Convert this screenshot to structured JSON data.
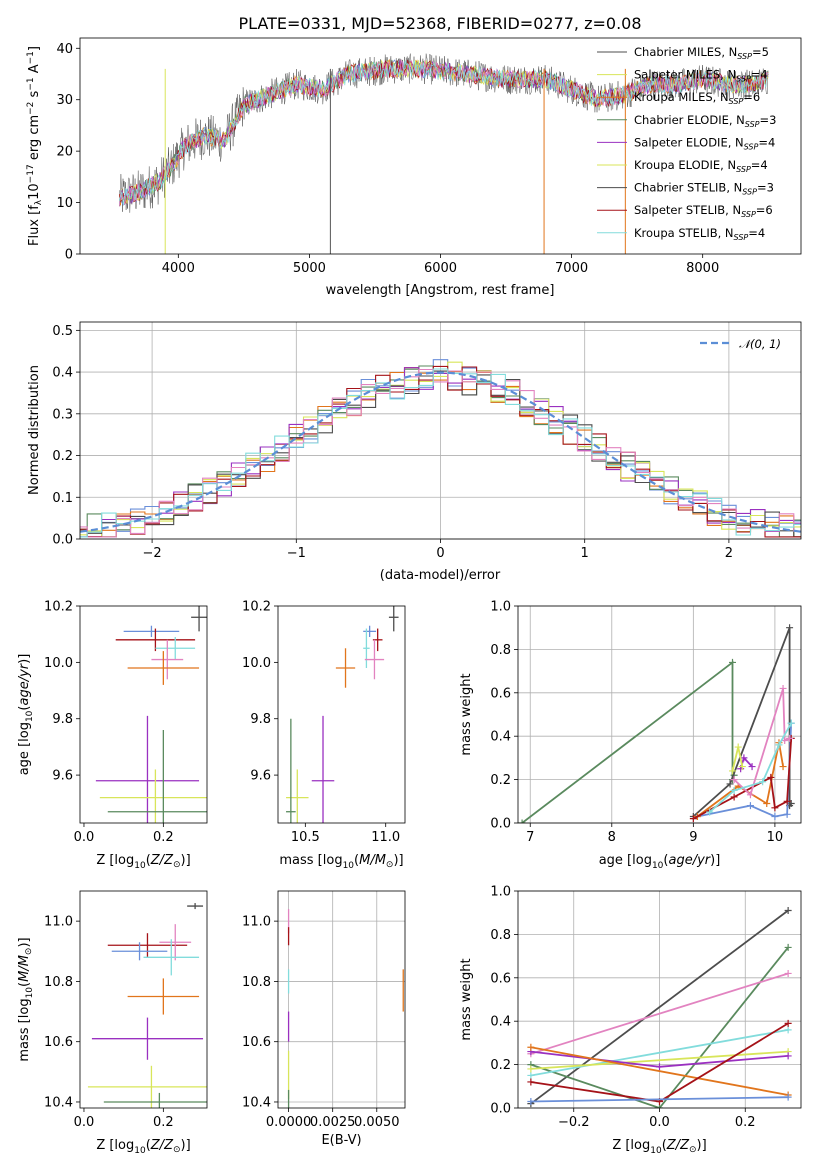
{
  "title": "PLATE=0331, MJD=52368, FIBERID=0277, z=0.08",
  "colors": {
    "chabrier_miles": "#6a8fd9",
    "salpeter_miles": "#e1751c",
    "kroupa_miles": "#5a8a5e",
    "chabrier_elodie": "#9a30c0",
    "salpeter_elodie": "#d8e55a",
    "kroupa_elodie": "#4d4d4d",
    "chabrier_stelib": "#a51218",
    "salpeter_stelib": "#e283c0",
    "kroupa_stelib": "#82dcdc",
    "pink": "#e283c0",
    "cyan": "#82dcdc",
    "normal": "#5b8ed6"
  },
  "chart_data": [
    {
      "type": "line",
      "panel": "spectrum",
      "xlabel": "wavelength [Angstrom, rest frame]",
      "ylabel": "Flux [f_λ10^-17 erg cm^-2 s^-1 A^-1]",
      "xlim": [
        3250,
        8750
      ],
      "ylim": [
        0,
        42
      ],
      "xticks": [
        4000,
        5000,
        6000,
        7000,
        8000
      ],
      "yticks": [
        0,
        10,
        20,
        30,
        40
      ],
      "legend_position": "upper-right",
      "legend": [
        "Chabrier MILES, N_SSP=5",
        "Salpeter MILES, N_SSP=4",
        "Kroupa MILES, N_SSP=6",
        "Chabrier ELODIE, N_SSP=3",
        "Salpeter ELODIE, N_SSP=4",
        "Kroupa ELODIE, N_SSP=4",
        "Chabrier STELIB, N_SSP=3",
        "Salpeter STELIB, N_SSP=6",
        "Kroupa STELIB, N_SSP=4"
      ],
      "continuum": {
        "x": [
          3550,
          3700,
          3850,
          3950,
          4050,
          4200,
          4350,
          4500,
          4700,
          4900,
          5100,
          5300,
          5600,
          5900,
          6200,
          6500,
          6800,
          7000,
          7200,
          7400,
          7600,
          7800,
          8000,
          8200,
          8400,
          8500
        ],
        "y": [
          11,
          12,
          14,
          17,
          21,
          23,
          22,
          29,
          31,
          33,
          32,
          35,
          36,
          36,
          35,
          34,
          34,
          32,
          30,
          31,
          33,
          33,
          34,
          33,
          33,
          34
        ]
      }
    },
    {
      "type": "bar",
      "panel": "residual-histogram",
      "xlabel": "(data-model)/error",
      "ylabel": "Normed distribution",
      "xlim": [
        -2.5,
        2.5
      ],
      "ylim": [
        0,
        0.52
      ],
      "xticks": [
        -2,
        -1,
        0,
        1,
        2
      ],
      "yticks": [
        0.0,
        0.1,
        0.2,
        0.3,
        0.4,
        0.5
      ],
      "grid": true,
      "legend_position": "upper-right",
      "legend": [
        "N(0,1)"
      ],
      "bin_width": 0.1,
      "envelope": {
        "x": [
          -2.5,
          -2.0,
          -1.5,
          -1.0,
          -0.5,
          0.0,
          0.5,
          1.0,
          1.5,
          2.0,
          2.5
        ],
        "y": [
          0.02,
          0.05,
          0.13,
          0.24,
          0.35,
          0.4,
          0.35,
          0.24,
          0.13,
          0.05,
          0.02
        ]
      }
    },
    {
      "type": "scatter",
      "panel": "age-vs-Z",
      "xlabel": "Z [log10(Z/Z⊙)]",
      "ylabel": "age [log10(age/yr)]",
      "xlim": [
        -0.01,
        0.31
      ],
      "ylim": [
        9.43,
        10.2
      ],
      "xticks": [
        0.0,
        0.2
      ],
      "yticks": [
        9.6,
        9.8,
        10.0,
        10.2
      ],
      "points": [
        {
          "series": "kroupa_elodie",
          "x": 0.29,
          "y": 10.16,
          "xerr": 0.02,
          "yerr": 0.05
        },
        {
          "series": "chabrier_miles",
          "x": 0.17,
          "y": 10.11,
          "xerr": 0.07,
          "yerr": 0.02
        },
        {
          "series": "chabrier_stelib",
          "x": 0.18,
          "y": 10.08,
          "xerr": 0.1,
          "yerr": 0.04
        },
        {
          "series": "kroupa_stelib",
          "x": 0.23,
          "y": 10.05,
          "xerr": 0.05,
          "yerr": 0.04
        },
        {
          "series": "salpeter_stelib",
          "x": 0.21,
          "y": 10.01,
          "xerr": 0.04,
          "yerr": 0.07
        },
        {
          "series": "salpeter_miles",
          "x": 0.2,
          "y": 9.98,
          "xerr": 0.09,
          "yerr": 0.06
        },
        {
          "series": "chabrier_elodie",
          "x": 0.16,
          "y": 9.58,
          "xerr": 0.13,
          "yerr": 0.23
        },
        {
          "series": "salpeter_elodie",
          "x": 0.18,
          "y": 9.52,
          "xerr": 0.14,
          "yerr": 0.1
        },
        {
          "series": "kroupa_miles",
          "x": 0.2,
          "y": 9.47,
          "xerr": 0.14,
          "yerr": 0.29
        }
      ]
    },
    {
      "type": "scatter",
      "panel": "age-vs-mass",
      "xlabel": "mass [log10(M/M⊙)]",
      "ylabel": "",
      "xlim": [
        10.33,
        11.12
      ],
      "ylim": [
        9.43,
        10.2
      ],
      "xticks": [
        10.5,
        11.0
      ],
      "yticks": [
        9.6,
        9.8,
        10.0,
        10.2
      ],
      "points": [
        {
          "series": "kroupa_elodie",
          "x": 11.05,
          "y": 10.16,
          "xerr": 0.03,
          "yerr": 0.05
        },
        {
          "series": "chabrier_miles",
          "x": 10.9,
          "y": 10.11,
          "xerr": 0.04,
          "yerr": 0.02
        },
        {
          "series": "chabrier_stelib",
          "x": 10.95,
          "y": 10.08,
          "xerr": 0.03,
          "yerr": 0.04
        },
        {
          "series": "kroupa_stelib",
          "x": 10.88,
          "y": 10.05,
          "xerr": 0.02,
          "yerr": 0.07
        },
        {
          "series": "salpeter_stelib",
          "x": 10.93,
          "y": 10.01,
          "xerr": 0.06,
          "yerr": 0.07
        },
        {
          "series": "salpeter_miles",
          "x": 10.75,
          "y": 9.98,
          "xerr": 0.06,
          "yerr": 0.07
        },
        {
          "series": "chabrier_elodie",
          "x": 10.61,
          "y": 9.58,
          "xerr": 0.07,
          "yerr": 0.23
        },
        {
          "series": "salpeter_elodie",
          "x": 10.45,
          "y": 9.52,
          "xerr": 0.07,
          "yerr": 0.1
        },
        {
          "series": "kroupa_miles",
          "x": 10.41,
          "y": 9.47,
          "xerr": 0.03,
          "yerr": 0.33
        }
      ]
    },
    {
      "type": "line",
      "panel": "mass-weight-vs-age",
      "xlabel": "age [log10(age/yr)]",
      "ylabel": "mass weight",
      "xlim": [
        6.85,
        10.32
      ],
      "ylim": [
        0,
        1.0
      ],
      "xticks": [
        7,
        8,
        9,
        10
      ],
      "yticks": [
        0.0,
        0.2,
        0.4,
        0.6,
        0.8,
        1.0
      ],
      "grid": true,
      "series": [
        {
          "key": "kroupa_miles",
          "x": [
            6.9,
            9.48,
            9.48,
            9.5
          ],
          "y": [
            0.0,
            0.74,
            0.2,
            0.22
          ]
        },
        {
          "key": "kroupa_elodie",
          "x": [
            9.0,
            9.45,
            10.18,
            10.18,
            10.2
          ],
          "y": [
            0.03,
            0.18,
            0.9,
            0.08,
            0.09
          ]
        },
        {
          "key": "chabrier_miles",
          "x": [
            9.05,
            9.7,
            10.0,
            10.15,
            10.2
          ],
          "y": [
            0.03,
            0.08,
            0.03,
            0.04,
            0.46
          ]
        },
        {
          "key": "salpeter_miles",
          "x": [
            9.05,
            9.55,
            9.9,
            10.05,
            10.1
          ],
          "y": [
            0.03,
            0.17,
            0.09,
            0.37,
            0.26
          ]
        },
        {
          "key": "chabrier_stelib",
          "x": [
            9.0,
            9.5,
            9.95,
            10.0,
            10.15,
            10.2
          ],
          "y": [
            0.02,
            0.12,
            0.21,
            0.07,
            0.1,
            0.39
          ]
        },
        {
          "key": "salpeter_stelib",
          "x": [
            9.5,
            9.7,
            10.1,
            10.12,
            10.18
          ],
          "y": [
            0.2,
            0.13,
            0.62,
            0.38,
            0.39
          ]
        },
        {
          "key": "kroupa_stelib",
          "x": [
            9.2,
            9.5,
            9.85,
            10.05,
            10.2
          ],
          "y": [
            0.05,
            0.15,
            0.19,
            0.36,
            0.46
          ]
        },
        {
          "key": "chabrier_elodie",
          "x": [
            9.58,
            9.62,
            9.72
          ],
          "y": [
            0.25,
            0.3,
            0.26
          ]
        },
        {
          "key": "salpeter_elodie",
          "x": [
            9.48,
            9.55,
            9.6
          ],
          "y": [
            0.24,
            0.35,
            0.26
          ]
        }
      ]
    },
    {
      "type": "scatter",
      "panel": "mass-vs-Z",
      "xlabel": "Z [log10(Z/Z⊙)]",
      "ylabel": "mass [log10(M/M⊙)]",
      "xlim": [
        -0.01,
        0.31
      ],
      "ylim": [
        10.38,
        11.1
      ],
      "xticks": [
        0.0,
        0.2
      ],
      "yticks": [
        10.4,
        10.6,
        10.8,
        11.0
      ],
      "points": [
        {
          "series": "kroupa_elodie",
          "x": 0.28,
          "y": 11.05,
          "xerr": 0.02,
          "yerr": 0.01
        },
        {
          "series": "chabrier_stelib",
          "x": 0.16,
          "y": 10.92,
          "xerr": 0.1,
          "yerr": 0.04
        },
        {
          "series": "salpeter_stelib",
          "x": 0.23,
          "y": 10.93,
          "xerr": 0.04,
          "yerr": 0.06
        },
        {
          "series": "chabrier_miles",
          "x": 0.14,
          "y": 10.9,
          "xerr": 0.07,
          "yerr": 0.03
        },
        {
          "series": "kroupa_stelib",
          "x": 0.22,
          "y": 10.88,
          "xerr": 0.07,
          "yerr": 0.06
        },
        {
          "series": "salpeter_miles",
          "x": 0.2,
          "y": 10.75,
          "xerr": 0.09,
          "yerr": 0.06
        },
        {
          "series": "chabrier_elodie",
          "x": 0.16,
          "y": 10.61,
          "xerr": 0.14,
          "yerr": 0.07
        },
        {
          "series": "salpeter_elodie",
          "x": 0.17,
          "y": 10.45,
          "xerr": 0.16,
          "yerr": 0.07
        },
        {
          "series": "kroupa_miles",
          "x": 0.19,
          "y": 10.4,
          "xerr": 0.14,
          "yerr": 0.03
        }
      ]
    },
    {
      "type": "scatter",
      "panel": "mass-vs-EBV",
      "xlabel": "E(B-V)",
      "ylabel": "",
      "xlim": [
        -0.0006,
        0.0066
      ],
      "ylim": [
        10.38,
        11.1
      ],
      "xticks": [
        0.0,
        0.0025,
        0.005
      ],
      "xticklabels": [
        "0.0000",
        "0.0025",
        "0.0050"
      ],
      "yticks": [
        10.4,
        10.6,
        10.8,
        11.0
      ],
      "points": [
        {
          "series": "salpeter_stelib",
          "x": 0.0,
          "y": 11.0,
          "yerr": 0.04
        },
        {
          "series": "chabrier_stelib",
          "x": 0.0,
          "y": 10.95,
          "yerr": 0.03
        },
        {
          "series": "kroupa_stelib",
          "x": 0.0,
          "y": 10.8,
          "yerr": 0.04
        },
        {
          "series": "chabrier_elodie",
          "x": 0.0,
          "y": 10.65,
          "yerr": 0.05
        },
        {
          "series": "salpeter_elodie",
          "x": 0.0,
          "y": 10.49,
          "yerr": 0.08
        },
        {
          "series": "kroupa_miles",
          "x": 0.0,
          "y": 10.41,
          "yerr": 0.03
        },
        {
          "series": "salpeter_miles",
          "x": 0.0065,
          "y": 10.77,
          "yerr": 0.07
        }
      ]
    },
    {
      "type": "line",
      "panel": "mass-weight-vs-Z",
      "xlabel": "Z [log10(Z/Z⊙)]",
      "ylabel": "mass weight",
      "xlim": [
        -0.33,
        0.33
      ],
      "ylim": [
        0,
        1.0
      ],
      "xticks": [
        -0.2,
        0.0,
        0.2
      ],
      "yticks": [
        0.0,
        0.2,
        0.4,
        0.6,
        0.8,
        1.0
      ],
      "grid": true,
      "series": [
        {
          "key": "kroupa_elodie",
          "x": [
            -0.3,
            0.3
          ],
          "y": [
            0.02,
            0.91
          ]
        },
        {
          "key": "kroupa_miles",
          "x": [
            -0.3,
            0.0,
            0.3
          ],
          "y": [
            0.2,
            0.0,
            0.74
          ]
        },
        {
          "key": "salpeter_stelib",
          "x": [
            -0.3,
            0.3
          ],
          "y": [
            0.25,
            0.62
          ]
        },
        {
          "key": "kroupa_stelib",
          "x": [
            -0.3,
            0.3
          ],
          "y": [
            0.15,
            0.36
          ]
        },
        {
          "key": "salpeter_elodie",
          "x": [
            -0.3,
            0.3
          ],
          "y": [
            0.18,
            0.26
          ]
        },
        {
          "key": "chabrier_elodie",
          "x": [
            -0.3,
            0.0,
            0.3
          ],
          "y": [
            0.26,
            0.19,
            0.24
          ]
        },
        {
          "key": "salpeter_miles",
          "x": [
            -0.3,
            0.3
          ],
          "y": [
            0.28,
            0.06
          ]
        },
        {
          "key": "chabrier_stelib",
          "x": [
            -0.3,
            0.0,
            0.3
          ],
          "y": [
            0.12,
            0.03,
            0.39
          ]
        },
        {
          "key": "chabrier_miles",
          "x": [
            -0.3,
            0.3
          ],
          "y": [
            0.03,
            0.05
          ]
        }
      ]
    }
  ]
}
